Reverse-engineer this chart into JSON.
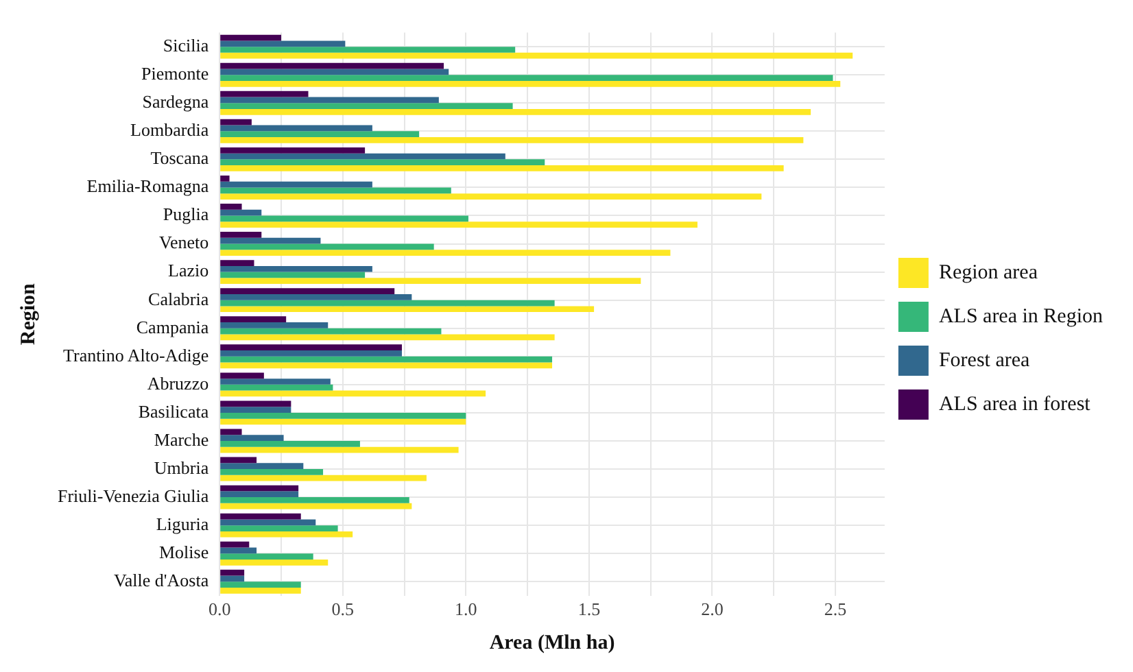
{
  "chart_data": {
    "type": "bar",
    "orientation": "horizontal",
    "xlabel": "Area (Mln ha)",
    "ylabel": "Region",
    "categories": [
      "Sicilia",
      "Piemonte",
      "Sardegna",
      "Lombardia",
      "Toscana",
      "Emilia-Romagna",
      "Puglia",
      "Veneto",
      "Lazio",
      "Calabria",
      "Campania",
      "Trantino Alto-Adige",
      "Abruzzo",
      "Basilicata",
      "Marche",
      "Umbria",
      "Friuli-Venezia Giulia",
      "Liguria",
      "Molise",
      "Valle d'Aosta"
    ],
    "series": [
      {
        "name": "ALS area in forest",
        "color": "#440154",
        "values": [
          0.25,
          0.91,
          0.36,
          0.13,
          0.59,
          0.04,
          0.09,
          0.17,
          0.14,
          0.71,
          0.27,
          0.74,
          0.18,
          0.29,
          0.09,
          0.15,
          0.32,
          0.33,
          0.12,
          0.1
        ]
      },
      {
        "name": "Forest area",
        "color": "#31688e",
        "values": [
          0.51,
          0.93,
          0.89,
          0.62,
          1.16,
          0.62,
          0.17,
          0.41,
          0.62,
          0.78,
          0.44,
          0.74,
          0.45,
          0.29,
          0.26,
          0.34,
          0.32,
          0.39,
          0.15,
          0.1
        ]
      },
      {
        "name": "ALS area in Region",
        "color": "#35b779",
        "values": [
          1.2,
          2.49,
          1.19,
          0.81,
          1.32,
          0.94,
          1.01,
          0.87,
          0.59,
          1.36,
          0.9,
          1.35,
          0.46,
          1.0,
          0.57,
          0.42,
          0.77,
          0.48,
          0.38,
          0.33
        ]
      },
      {
        "name": "Region area",
        "color": "#fde725",
        "values": [
          2.57,
          2.52,
          2.4,
          2.37,
          2.29,
          2.2,
          1.94,
          1.83,
          1.71,
          1.52,
          1.36,
          1.35,
          1.08,
          1.0,
          0.97,
          0.84,
          0.78,
          0.54,
          0.44,
          0.33
        ]
      }
    ],
    "xlim": [
      0,
      2.7
    ],
    "xticks": [
      {
        "value": 0,
        "label": "0.0"
      },
      {
        "value": 0.25,
        "label": null
      },
      {
        "value": 0.5,
        "label": "0.5"
      },
      {
        "value": 0.75,
        "label": null
      },
      {
        "value": 1,
        "label": "1.0"
      },
      {
        "value": 1.25,
        "label": null
      },
      {
        "value": 1.5,
        "label": "1.5"
      },
      {
        "value": 1.75,
        "label": null
      },
      {
        "value": 2,
        "label": "2.0"
      },
      {
        "value": 2.25,
        "label": null
      },
      {
        "value": 2.5,
        "label": "2.5"
      }
    ],
    "grid": true,
    "legend": "right"
  }
}
